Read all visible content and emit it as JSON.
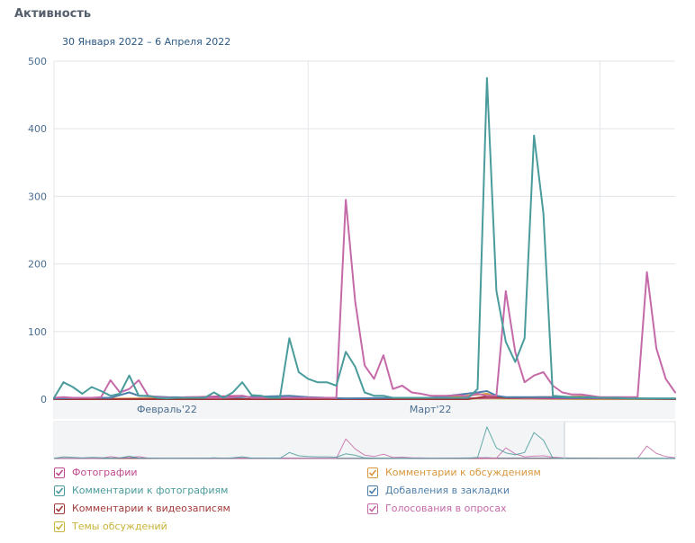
{
  "header": {
    "title": "Активность",
    "date_range": "30 Января 2022 – 6 Апреля 2022"
  },
  "chart_data": {
    "type": "line",
    "ylim": [
      0,
      500
    ],
    "yticks": [
      0,
      100,
      200,
      300,
      400,
      500
    ],
    "x_start": "2022-01-30",
    "x_days": 67,
    "month_labels": [
      {
        "label": "Февраль'22",
        "day": 12
      },
      {
        "label": "Март'22",
        "day": 40
      }
    ],
    "vertical_gridlines_days": [
      0,
      27,
      58
    ],
    "series": [
      {
        "name": "Комментарии к фотографиям",
        "color": "#4a9b9b",
        "points": [
          [
            0,
            2
          ],
          [
            1,
            25
          ],
          [
            2,
            18
          ],
          [
            3,
            8
          ],
          [
            4,
            18
          ],
          [
            5,
            12
          ],
          [
            6,
            5
          ],
          [
            7,
            8
          ],
          [
            8,
            35
          ],
          [
            9,
            5
          ],
          [
            10,
            5
          ],
          [
            11,
            2
          ],
          [
            12,
            1
          ],
          [
            13,
            2
          ],
          [
            14,
            2
          ],
          [
            15,
            2
          ],
          [
            16,
            2
          ],
          [
            17,
            10
          ],
          [
            18,
            2
          ],
          [
            19,
            10
          ],
          [
            20,
            25
          ],
          [
            21,
            6
          ],
          [
            22,
            5
          ],
          [
            23,
            2
          ],
          [
            24,
            2
          ],
          [
            25,
            90
          ],
          [
            26,
            40
          ],
          [
            27,
            30
          ],
          [
            28,
            25
          ],
          [
            29,
            25
          ],
          [
            30,
            20
          ],
          [
            31,
            70
          ],
          [
            32,
            48
          ],
          [
            33,
            10
          ],
          [
            34,
            5
          ],
          [
            35,
            5
          ],
          [
            36,
            2
          ],
          [
            37,
            2
          ],
          [
            38,
            2
          ],
          [
            39,
            2
          ],
          [
            40,
            2
          ],
          [
            41,
            2
          ],
          [
            42,
            2
          ],
          [
            43,
            2
          ],
          [
            44,
            2
          ],
          [
            45,
            15
          ],
          [
            46,
            475
          ],
          [
            47,
            160
          ],
          [
            48,
            85
          ],
          [
            49,
            55
          ],
          [
            50,
            90
          ],
          [
            51,
            390
          ],
          [
            52,
            275
          ],
          [
            53,
            5
          ],
          [
            54,
            4
          ],
          [
            55,
            3
          ],
          [
            56,
            3
          ],
          [
            57,
            3
          ],
          [
            58,
            2
          ],
          [
            59,
            2
          ],
          [
            60,
            2
          ],
          [
            61,
            1
          ],
          [
            62,
            1
          ],
          [
            63,
            1
          ],
          [
            64,
            1
          ],
          [
            65,
            1
          ],
          [
            66,
            1
          ]
        ]
      },
      {
        "name": "Голосования в опросах",
        "color": "#c56aa8",
        "points": [
          [
            0,
            2
          ],
          [
            1,
            3
          ],
          [
            2,
            2
          ],
          [
            3,
            2
          ],
          [
            4,
            2
          ],
          [
            5,
            3
          ],
          [
            6,
            28
          ],
          [
            7,
            10
          ],
          [
            8,
            15
          ],
          [
            9,
            28
          ],
          [
            10,
            5
          ],
          [
            11,
            3
          ],
          [
            12,
            2
          ],
          [
            13,
            2
          ],
          [
            14,
            3
          ],
          [
            15,
            3
          ],
          [
            16,
            2
          ],
          [
            17,
            2
          ],
          [
            18,
            2
          ],
          [
            19,
            3
          ],
          [
            20,
            5
          ],
          [
            21,
            2
          ],
          [
            22,
            2
          ],
          [
            23,
            2
          ],
          [
            24,
            2
          ],
          [
            25,
            2
          ],
          [
            26,
            2
          ],
          [
            27,
            2
          ],
          [
            28,
            2
          ],
          [
            29,
            2
          ],
          [
            30,
            2
          ],
          [
            31,
            295
          ],
          [
            32,
            145
          ],
          [
            33,
            50
          ],
          [
            34,
            30
          ],
          [
            35,
            65
          ],
          [
            36,
            15
          ],
          [
            37,
            20
          ],
          [
            38,
            10
          ],
          [
            39,
            8
          ],
          [
            40,
            5
          ],
          [
            41,
            5
          ],
          [
            42,
            5
          ],
          [
            43,
            6
          ],
          [
            44,
            4
          ],
          [
            45,
            8
          ],
          [
            46,
            5
          ],
          [
            47,
            5
          ],
          [
            48,
            160
          ],
          [
            49,
            70
          ],
          [
            50,
            25
          ],
          [
            51,
            35
          ],
          [
            52,
            40
          ],
          [
            53,
            20
          ],
          [
            54,
            10
          ],
          [
            55,
            7
          ],
          [
            56,
            7
          ],
          [
            57,
            5
          ],
          [
            58,
            3
          ],
          [
            59,
            3
          ],
          [
            60,
            3
          ],
          [
            61,
            3
          ],
          [
            62,
            3
          ],
          [
            63,
            188
          ],
          [
            64,
            75
          ],
          [
            65,
            30
          ],
          [
            66,
            10
          ]
        ]
      },
      {
        "name": "Добавления в закладки",
        "color": "#4e7faa",
        "points": [
          [
            0,
            1
          ],
          [
            3,
            2
          ],
          [
            6,
            2
          ],
          [
            8,
            10
          ],
          [
            9,
            5
          ],
          [
            12,
            3
          ],
          [
            18,
            2
          ],
          [
            20,
            3
          ],
          [
            25,
            5
          ],
          [
            27,
            3
          ],
          [
            31,
            1
          ],
          [
            36,
            2
          ],
          [
            40,
            2
          ],
          [
            45,
            10
          ],
          [
            46,
            12
          ],
          [
            47,
            5
          ],
          [
            48,
            3
          ],
          [
            52,
            3
          ],
          [
            55,
            2
          ],
          [
            58,
            2
          ],
          [
            62,
            1
          ],
          [
            66,
            1
          ]
        ]
      },
      {
        "name": "Комментарии к видеозаписям",
        "color": "#a33a3a",
        "points": [
          [
            0,
            0
          ],
          [
            20,
            0
          ],
          [
            30,
            0
          ],
          [
            44,
            0
          ],
          [
            45,
            2
          ],
          [
            46,
            4
          ],
          [
            47,
            3
          ],
          [
            48,
            2
          ],
          [
            52,
            3
          ],
          [
            56,
            3
          ],
          [
            58,
            2
          ],
          [
            62,
            1
          ],
          [
            66,
            0
          ]
        ]
      },
      {
        "name": "Комментарии к обсуждениям",
        "color": "#d8973c",
        "points": [
          [
            0,
            0
          ],
          [
            10,
            1
          ],
          [
            20,
            0
          ],
          [
            30,
            1
          ],
          [
            40,
            0
          ],
          [
            46,
            8
          ],
          [
            47,
            3
          ],
          [
            50,
            2
          ],
          [
            56,
            4
          ],
          [
            58,
            2
          ],
          [
            66,
            0
          ]
        ]
      },
      {
        "name": "Фотографии",
        "color": "#c04a8e",
        "points": [
          [
            0,
            0
          ],
          [
            10,
            1
          ],
          [
            20,
            5
          ],
          [
            21,
            2
          ],
          [
            30,
            1
          ],
          [
            40,
            0
          ],
          [
            47,
            2
          ],
          [
            50,
            1
          ],
          [
            58,
            1
          ],
          [
            66,
            0
          ]
        ]
      },
      {
        "name": "Темы обсуждений",
        "color": "#c8b43a",
        "points": [
          [
            0,
            0
          ],
          [
            30,
            0
          ],
          [
            46,
            1
          ],
          [
            56,
            0
          ],
          [
            66,
            0
          ]
        ]
      }
    ]
  },
  "legend": {
    "items": [
      {
        "label": "Фотографии",
        "color": "#c04a8e"
      },
      {
        "label": "Комментарии к обсуждениям",
        "color": "#d8973c"
      },
      {
        "label": "Комментарии к фотографиям",
        "color": "#4a9b9b"
      },
      {
        "label": "Добавления в закладки",
        "color": "#4e7faa"
      },
      {
        "label": "Комментарии к видеозаписям",
        "color": "#a33a3a"
      },
      {
        "label": "Голосования в опросах",
        "color": "#c56aa8"
      },
      {
        "label": "Темы обсуждений",
        "color": "#c8b43a"
      }
    ]
  }
}
